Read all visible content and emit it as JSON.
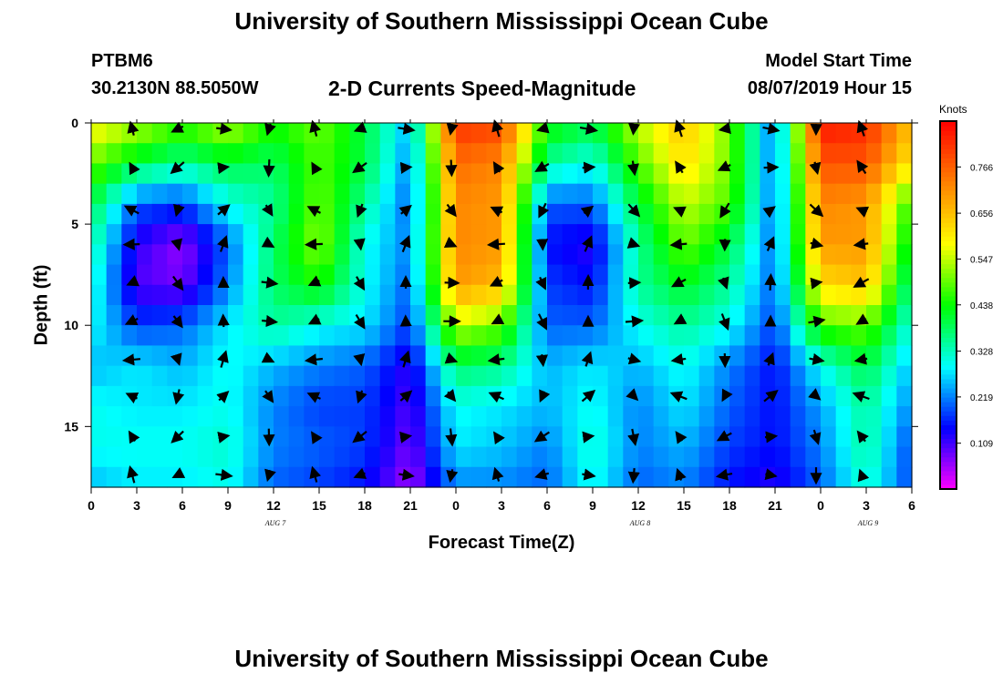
{
  "page": {
    "title_top": "University of Southern Mississippi Ocean Cube",
    "title_bottom": "University of Southern Mississippi Ocean Cube",
    "station": "PTBM6",
    "coords": "30.2130N 88.5050W",
    "subtitle": "2-D Currents Speed-Magnitude",
    "model_start_label": "Model Start Time",
    "model_start_value": "08/07/2019 Hour 15",
    "units": "Knots"
  },
  "chart_data": {
    "type": "heatmap",
    "title": "2-D Currents Speed-Magnitude",
    "xlabel": "Forecast Time(Z)",
    "ylabel": "Depth (ft)",
    "x_ticks": [
      "0",
      "3",
      "6",
      "9",
      "12",
      "15",
      "18",
      "21",
      "0",
      "3",
      "6",
      "9",
      "12",
      "15",
      "18",
      "21",
      "0",
      "3",
      "6"
    ],
    "x_range_hours": [
      0,
      54
    ],
    "date_labels": [
      {
        "label": "AUG 7",
        "hour": 12
      },
      {
        "label": "AUG 8",
        "hour": 36
      },
      {
        "label": "AUG 9",
        "hour": 51
      }
    ],
    "y_ticks": [
      0,
      5,
      10,
      15
    ],
    "y_range_ft": [
      0,
      18
    ],
    "y_inverted": true,
    "colorbar": {
      "label": "Knots",
      "ticks": [
        0.109,
        0.219,
        0.328,
        0.438,
        0.547,
        0.656,
        0.766
      ],
      "range": [
        0.0,
        0.875
      ],
      "colors": [
        "#ff00ff",
        "#0000ff",
        "#00ffff",
        "#00ff00",
        "#ffff00",
        "#ff8000",
        "#ff0000"
      ]
    },
    "speed_field": {
      "time_hours": [
        0,
        3,
        6,
        9,
        12,
        15,
        18,
        21,
        24,
        27,
        30,
        33,
        36,
        39,
        42,
        45,
        48,
        51,
        54
      ],
      "depth_ft": [
        0,
        2,
        4,
        6,
        8,
        10,
        12,
        14,
        16,
        18
      ],
      "speed": [
        [
          0.6,
          0.55,
          0.48,
          0.55,
          0.45,
          0.5,
          0.4,
          0.25,
          0.82,
          0.8,
          0.45,
          0.4,
          0.55,
          0.65,
          0.5,
          0.2,
          0.85,
          0.83,
          0.65
        ],
        [
          0.5,
          0.4,
          0.35,
          0.4,
          0.38,
          0.48,
          0.4,
          0.22,
          0.75,
          0.72,
          0.35,
          0.3,
          0.48,
          0.62,
          0.5,
          0.2,
          0.78,
          0.78,
          0.6
        ],
        [
          0.4,
          0.2,
          0.18,
          0.3,
          0.35,
          0.5,
          0.35,
          0.2,
          0.72,
          0.7,
          0.2,
          0.2,
          0.4,
          0.55,
          0.48,
          0.2,
          0.72,
          0.7,
          0.45
        ],
        [
          0.35,
          0.12,
          0.06,
          0.2,
          0.38,
          0.52,
          0.3,
          0.22,
          0.72,
          0.7,
          0.15,
          0.12,
          0.35,
          0.5,
          0.4,
          0.2,
          0.7,
          0.7,
          0.4
        ],
        [
          0.32,
          0.1,
          0.08,
          0.22,
          0.38,
          0.45,
          0.3,
          0.2,
          0.7,
          0.66,
          0.18,
          0.15,
          0.35,
          0.42,
          0.35,
          0.2,
          0.62,
          0.65,
          0.35
        ],
        [
          0.3,
          0.18,
          0.2,
          0.28,
          0.35,
          0.3,
          0.28,
          0.18,
          0.55,
          0.5,
          0.2,
          0.2,
          0.3,
          0.35,
          0.3,
          0.18,
          0.48,
          0.5,
          0.3
        ],
        [
          0.25,
          0.28,
          0.25,
          0.3,
          0.25,
          0.22,
          0.2,
          0.12,
          0.38,
          0.36,
          0.25,
          0.28,
          0.25,
          0.3,
          0.22,
          0.15,
          0.3,
          0.4,
          0.25
        ],
        [
          0.3,
          0.28,
          0.28,
          0.3,
          0.22,
          0.18,
          0.18,
          0.1,
          0.3,
          0.28,
          0.25,
          0.3,
          0.22,
          0.28,
          0.2,
          0.15,
          0.24,
          0.35,
          0.22
        ],
        [
          0.3,
          0.3,
          0.3,
          0.32,
          0.22,
          0.2,
          0.18,
          0.08,
          0.28,
          0.26,
          0.22,
          0.32,
          0.22,
          0.25,
          0.18,
          0.15,
          0.22,
          0.35,
          0.18
        ],
        [
          0.25,
          0.28,
          0.28,
          0.3,
          0.2,
          0.18,
          0.15,
          0.05,
          0.22,
          0.22,
          0.2,
          0.3,
          0.2,
          0.22,
          0.15,
          0.12,
          0.2,
          0.32,
          0.18
        ]
      ]
    },
    "arrows_note": "direction vectors overlaid at 3-hour intervals"
  }
}
